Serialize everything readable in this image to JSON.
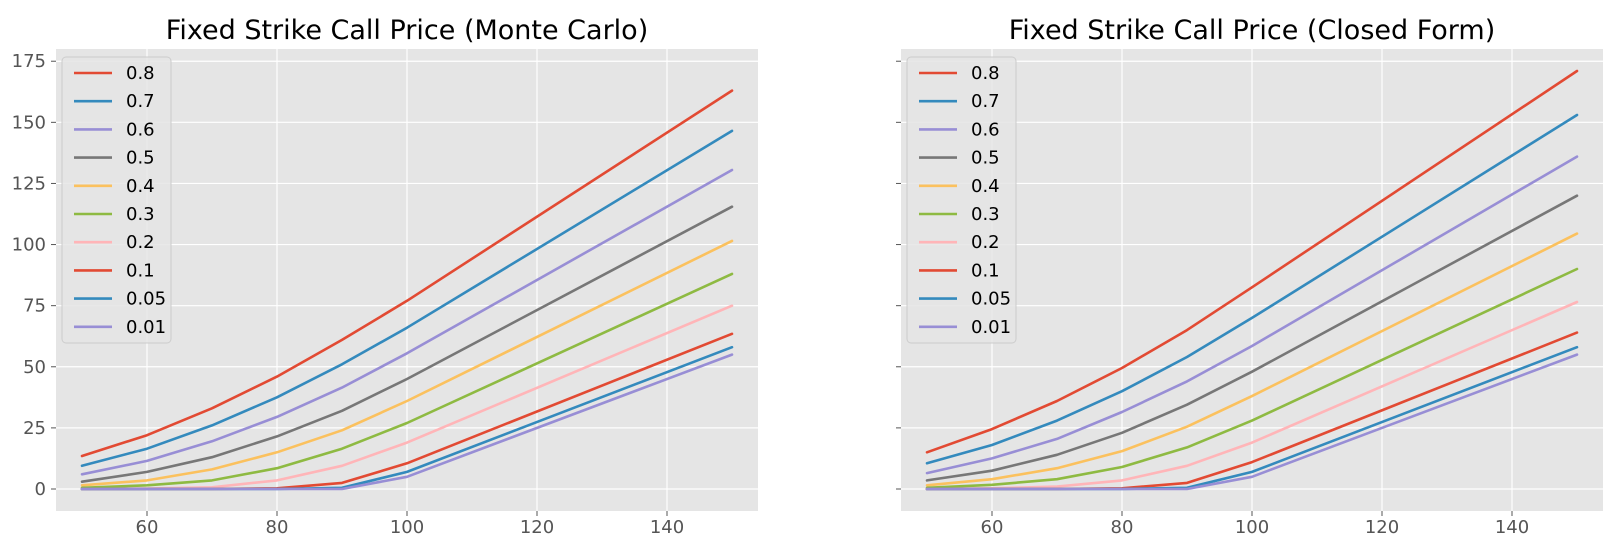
{
  "chart_data": [
    {
      "type": "line",
      "title": "Fixed Strike Call Price (Monte Carlo)",
      "xlabel": "",
      "ylabel": "",
      "x": [
        50,
        60,
        70,
        80,
        90,
        100,
        150
      ],
      "xticks": [
        60,
        80,
        100,
        120,
        140
      ],
      "yticks": [
        0,
        25,
        50,
        75,
        100,
        125,
        150,
        175
      ],
      "xlim": [
        46,
        154
      ],
      "ylim": [
        -9,
        180
      ],
      "grid": true,
      "legend_position": "top-left",
      "series": [
        {
          "name": "0.8",
          "color": "#E24A33",
          "values": [
            13.5,
            22,
            33,
            46,
            61,
            77,
            163
          ]
        },
        {
          "name": "0.7",
          "color": "#348ABD",
          "values": [
            9.5,
            16.5,
            26,
            37.5,
            51,
            66,
            146.5
          ]
        },
        {
          "name": "0.6",
          "color": "#988ED5",
          "values": [
            6,
            11.5,
            19.5,
            29.5,
            41.5,
            55.5,
            130.5
          ]
        },
        {
          "name": "0.5",
          "color": "#777777",
          "values": [
            3,
            7,
            13,
            21.5,
            32,
            45,
            115.5
          ]
        },
        {
          "name": "0.4",
          "color": "#FBC15E",
          "values": [
            1.5,
            3.5,
            8,
            15,
            24,
            36,
            101.5
          ]
        },
        {
          "name": "0.3",
          "color": "#8EBA42",
          "values": [
            0.5,
            1.5,
            3.5,
            8.5,
            16.5,
            27,
            88
          ]
        },
        {
          "name": "0.2",
          "color": "#FFB5B8",
          "values": [
            0,
            0.2,
            0.7,
            3.5,
            9.5,
            19,
            75
          ]
        },
        {
          "name": "0.1",
          "color": "#E24A33",
          "values": [
            0,
            0,
            0,
            0.3,
            2.5,
            10.5,
            63.5
          ]
        },
        {
          "name": "0.05",
          "color": "#348ABD",
          "values": [
            0,
            0,
            0,
            0,
            0.5,
            7,
            58
          ]
        },
        {
          "name": "0.01",
          "color": "#988ED5",
          "values": [
            0,
            0,
            0,
            0,
            0,
            5,
            55
          ]
        }
      ]
    },
    {
      "type": "line",
      "title": "Fixed Strike Call Price (Closed Form)",
      "xlabel": "",
      "ylabel": "",
      "x": [
        50,
        60,
        70,
        80,
        90,
        100,
        150
      ],
      "xticks": [
        60,
        80,
        100,
        120,
        140
      ],
      "yticks": [
        0,
        25,
        50,
        75,
        100,
        125,
        150,
        175
      ],
      "xlim": [
        46,
        154
      ],
      "ylim": [
        -9,
        180
      ],
      "grid": true,
      "legend_position": "top-left",
      "series": [
        {
          "name": "0.8",
          "color": "#E24A33",
          "values": [
            15,
            24.5,
            36,
            49.5,
            65,
            82.5,
            171
          ]
        },
        {
          "name": "0.7",
          "color": "#348ABD",
          "values": [
            10.5,
            18,
            28,
            40,
            54,
            70,
            153
          ]
        },
        {
          "name": "0.6",
          "color": "#988ED5",
          "values": [
            6.5,
            12.5,
            20.5,
            31.5,
            44,
            58.5,
            136
          ]
        },
        {
          "name": "0.5",
          "color": "#777777",
          "values": [
            3.5,
            7.5,
            14,
            23,
            34.5,
            48,
            120
          ]
        },
        {
          "name": "0.4",
          "color": "#FBC15E",
          "values": [
            1.5,
            4,
            8.5,
            15.5,
            25.5,
            38,
            104.5
          ]
        },
        {
          "name": "0.3",
          "color": "#8EBA42",
          "values": [
            0.5,
            1.7,
            4,
            9,
            17,
            28,
            90
          ]
        },
        {
          "name": "0.2",
          "color": "#FFB5B8",
          "values": [
            0,
            0.3,
            1,
            3.5,
            9.5,
            19,
            76.5
          ]
        },
        {
          "name": "0.1",
          "color": "#E24A33",
          "values": [
            0,
            0,
            0,
            0.3,
            2.5,
            11,
            64
          ]
        },
        {
          "name": "0.05",
          "color": "#348ABD",
          "values": [
            0,
            0,
            0,
            0,
            0.5,
            7,
            58
          ]
        },
        {
          "name": "0.01",
          "color": "#988ED5",
          "values": [
            0,
            0,
            0,
            0,
            0,
            5,
            55
          ]
        }
      ]
    }
  ]
}
